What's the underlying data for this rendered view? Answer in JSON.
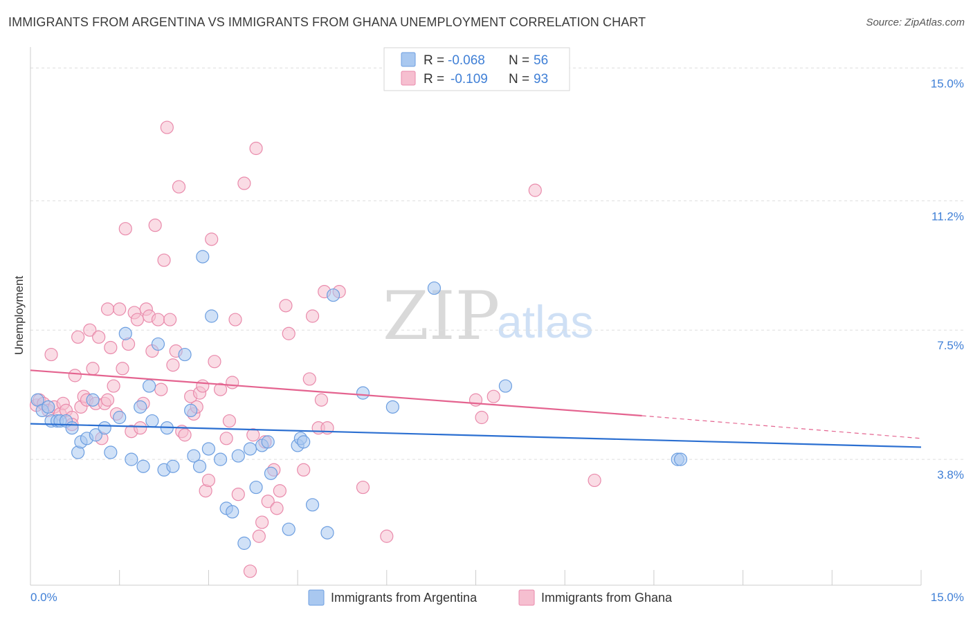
{
  "title": "IMMIGRANTS FROM ARGENTINA VS IMMIGRANTS FROM GHANA UNEMPLOYMENT CORRELATION CHART",
  "source": "Source: ZipAtlas.com",
  "watermark": {
    "zip": "ZIP",
    "atlas": "atlas"
  },
  "legend_top": [
    {
      "r_label": "R =",
      "r_value": "-0.068",
      "n_label": "N =",
      "n_value": "56"
    },
    {
      "r_label": "R =",
      "r_value": "-0.109",
      "n_label": "N =",
      "n_value": "93"
    }
  ],
  "legend_bottom": [
    "Immigrants from Argentina",
    "Immigrants from Ghana"
  ],
  "colors": {
    "argentina_fill": "#a9c8f0",
    "argentina_stroke": "#6c9ee0",
    "argentina_line": "#2b6fd1",
    "ghana_fill": "#f6bfd0",
    "ghana_stroke": "#e98aab",
    "ghana_line": "#e4638f",
    "tick_text": "#3f7fd6",
    "grid": "#dddddd"
  },
  "chart_data": {
    "type": "scatter",
    "ylabel": "Unemployment",
    "xlim": [
      0,
      15
    ],
    "ylim": [
      0.2,
      15.6
    ],
    "y_ticks": [
      {
        "value": 3.8,
        "label": "3.8%"
      },
      {
        "value": 7.5,
        "label": "7.5%"
      },
      {
        "value": 11.2,
        "label": "11.2%"
      },
      {
        "value": 15.0,
        "label": "15.0%"
      }
    ],
    "x_tick_labels": {
      "left": "0.0%",
      "right": "15.0%"
    },
    "x_minor_ticks": [
      1.5,
      3.0,
      4.5,
      6.0,
      7.5,
      9.0,
      10.5,
      12.0,
      13.5,
      15.0
    ],
    "series": [
      {
        "name": "Immigrants from Argentina",
        "points": [
          [
            0.12,
            5.5
          ],
          [
            0.2,
            5.2
          ],
          [
            0.3,
            5.3
          ],
          [
            0.35,
            4.9
          ],
          [
            0.45,
            4.9
          ],
          [
            0.5,
            4.9
          ],
          [
            0.6,
            4.9
          ],
          [
            0.7,
            4.7
          ],
          [
            0.8,
            4.0
          ],
          [
            0.85,
            4.3
          ],
          [
            0.95,
            4.4
          ],
          [
            1.05,
            5.5
          ],
          [
            1.1,
            4.5
          ],
          [
            1.25,
            4.7
          ],
          [
            1.35,
            4.0
          ],
          [
            1.5,
            5.0
          ],
          [
            1.6,
            7.4
          ],
          [
            1.7,
            3.8
          ],
          [
            1.85,
            5.3
          ],
          [
            1.9,
            3.6
          ],
          [
            2.0,
            5.9
          ],
          [
            2.05,
            4.9
          ],
          [
            2.15,
            7.1
          ],
          [
            2.25,
            3.5
          ],
          [
            2.3,
            4.7
          ],
          [
            2.4,
            3.6
          ],
          [
            2.6,
            6.8
          ],
          [
            2.7,
            5.2
          ],
          [
            2.75,
            3.9
          ],
          [
            2.85,
            3.6
          ],
          [
            2.9,
            9.6
          ],
          [
            3.0,
            4.1
          ],
          [
            3.05,
            7.9
          ],
          [
            3.2,
            3.8
          ],
          [
            3.3,
            2.4
          ],
          [
            3.4,
            2.3
          ],
          [
            3.5,
            3.9
          ],
          [
            3.6,
            1.4
          ],
          [
            3.7,
            4.1
          ],
          [
            3.8,
            3.0
          ],
          [
            3.9,
            4.2
          ],
          [
            4.0,
            4.3
          ],
          [
            4.05,
            3.4
          ],
          [
            4.5,
            4.2
          ],
          [
            4.55,
            4.4
          ],
          [
            4.6,
            4.3
          ],
          [
            4.35,
            1.8
          ],
          [
            4.75,
            2.5
          ],
          [
            5.0,
            1.7
          ],
          [
            5.1,
            8.5
          ],
          [
            5.6,
            5.7
          ],
          [
            6.1,
            5.3
          ],
          [
            6.8,
            8.7
          ],
          [
            8.0,
            5.9
          ],
          [
            10.9,
            3.8
          ],
          [
            10.95,
            3.8
          ]
        ],
        "trend": {
          "x": [
            0,
            15
          ],
          "y": [
            4.82,
            4.15
          ]
        }
      },
      {
        "name": "Immigrants from Ghana",
        "points": [
          [
            0.1,
            5.35
          ],
          [
            0.15,
            5.5
          ],
          [
            0.22,
            5.4
          ],
          [
            0.3,
            5.2
          ],
          [
            0.4,
            5.3
          ],
          [
            0.35,
            6.8
          ],
          [
            0.5,
            5.1
          ],
          [
            0.55,
            5.4
          ],
          [
            0.6,
            5.2
          ],
          [
            0.7,
            5.0
          ],
          [
            0.75,
            6.2
          ],
          [
            0.8,
            7.3
          ],
          [
            0.85,
            5.3
          ],
          [
            0.9,
            5.6
          ],
          [
            0.95,
            5.5
          ],
          [
            1.0,
            7.5
          ],
          [
            1.05,
            6.4
          ],
          [
            1.1,
            5.4
          ],
          [
            1.15,
            7.3
          ],
          [
            1.2,
            4.4
          ],
          [
            1.25,
            5.4
          ],
          [
            1.3,
            8.1
          ],
          [
            1.35,
            7.0
          ],
          [
            1.4,
            5.9
          ],
          [
            1.45,
            5.1
          ],
          [
            1.5,
            8.1
          ],
          [
            1.55,
            6.4
          ],
          [
            1.6,
            10.4
          ],
          [
            1.65,
            7.1
          ],
          [
            1.7,
            4.6
          ],
          [
            1.75,
            8.0
          ],
          [
            1.8,
            7.8
          ],
          [
            1.85,
            4.7
          ],
          [
            1.9,
            5.4
          ],
          [
            1.95,
            8.1
          ],
          [
            2.0,
            7.9
          ],
          [
            2.05,
            6.9
          ],
          [
            2.1,
            10.5
          ],
          [
            2.15,
            7.8
          ],
          [
            2.2,
            5.8
          ],
          [
            2.25,
            9.5
          ],
          [
            2.3,
            13.3
          ],
          [
            2.35,
            7.8
          ],
          [
            2.4,
            6.5
          ],
          [
            2.45,
            6.9
          ],
          [
            2.5,
            11.6
          ],
          [
            2.55,
            4.6
          ],
          [
            2.6,
            4.5
          ],
          [
            2.7,
            5.6
          ],
          [
            2.75,
            5.1
          ],
          [
            2.8,
            5.3
          ],
          [
            2.85,
            5.7
          ],
          [
            2.9,
            5.9
          ],
          [
            2.95,
            2.9
          ],
          [
            3.0,
            3.2
          ],
          [
            3.05,
            10.1
          ],
          [
            3.1,
            6.6
          ],
          [
            3.2,
            5.8
          ],
          [
            3.3,
            4.4
          ],
          [
            3.35,
            4.9
          ],
          [
            3.4,
            6.0
          ],
          [
            3.45,
            7.8
          ],
          [
            3.5,
            2.8
          ],
          [
            3.6,
            11.7
          ],
          [
            3.7,
            0.6
          ],
          [
            3.75,
            4.5
          ],
          [
            3.8,
            12.7
          ],
          [
            3.85,
            1.6
          ],
          [
            3.9,
            2.0
          ],
          [
            3.95,
            4.3
          ],
          [
            4.0,
            2.6
          ],
          [
            4.1,
            3.5
          ],
          [
            4.15,
            2.4
          ],
          [
            4.2,
            2.9
          ],
          [
            4.3,
            8.2
          ],
          [
            4.35,
            7.4
          ],
          [
            4.6,
            3.5
          ],
          [
            4.7,
            6.1
          ],
          [
            4.75,
            7.9
          ],
          [
            4.85,
            4.7
          ],
          [
            4.9,
            5.5
          ],
          [
            4.95,
            8.6
          ],
          [
            5.0,
            4.7
          ],
          [
            5.2,
            8.6
          ],
          [
            5.6,
            3.0
          ],
          [
            6.0,
            1.6
          ],
          [
            7.5,
            5.5
          ],
          [
            7.6,
            5.0
          ],
          [
            7.8,
            5.6
          ],
          [
            8.5,
            11.5
          ],
          [
            9.5,
            3.2
          ],
          [
            0.7,
            4.8
          ],
          [
            1.3,
            5.5
          ]
        ],
        "trend": {
          "x": [
            0,
            10.3
          ],
          "y": [
            6.35,
            5.05
          ]
        },
        "trend_dashed": {
          "x": [
            10.3,
            15
          ],
          "y": [
            5.05,
            4.4
          ]
        }
      }
    ],
    "grid": true
  }
}
